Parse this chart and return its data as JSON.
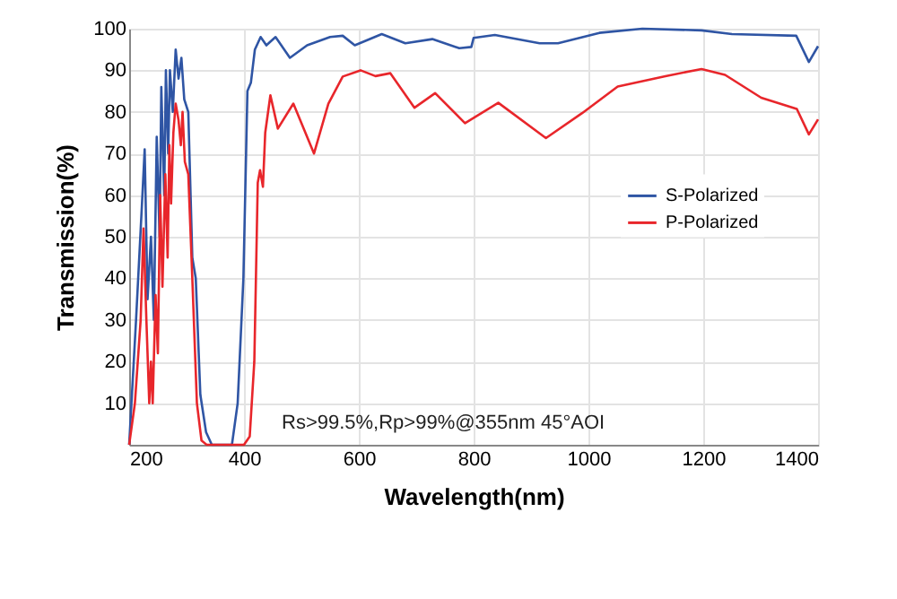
{
  "chart_data": {
    "type": "line",
    "xlabel": "Wavelength(nm)",
    "ylabel": "Transmission(%)",
    "xlim": [
      200,
      1400
    ],
    "xticks": [
      200,
      400,
      600,
      800,
      1000,
      1200,
      1400
    ],
    "ylim": [
      0,
      100
    ],
    "yticks": [
      10,
      20,
      30,
      40,
      50,
      60,
      70,
      80,
      90,
      100
    ],
    "grid": true,
    "legend": "right",
    "marker": "none",
    "line_style": "solid",
    "annotations": [
      "Rs>99.5%,Rp>99%@355nm 45°AOI"
    ],
    "series": [
      {
        "name": "S-Polarized",
        "color": "#2f55a4",
        "x": [
          200,
          212,
          222,
          227,
          232,
          238,
          243,
          248,
          253,
          256,
          261,
          264,
          268,
          271,
          276,
          281,
          286,
          291,
          296,
          303,
          310,
          316,
          324,
          334,
          344,
          379,
          389,
          399,
          406,
          412,
          419,
          429,
          439,
          455,
          480,
          510,
          550,
          572,
          593,
          640,
          681,
          728,
          775,
          796,
          800,
          837,
          915,
          947,
          1019,
          1094,
          1197,
          1250,
          1362,
          1384,
          1400
        ],
        "values": [
          0,
          30,
          57,
          71,
          35,
          50,
          30,
          74,
          50,
          86,
          60,
          90,
          70,
          90,
          80,
          95,
          88,
          93,
          83,
          80,
          45,
          40,
          12,
          3,
          0,
          0,
          10,
          40,
          85,
          87,
          95,
          98,
          96,
          98,
          93,
          96,
          98,
          98.3,
          96,
          98.7,
          96.5,
          97.5,
          95.3,
          95.6,
          97.8,
          98.5,
          96.5,
          96.5,
          99,
          100,
          99.6,
          98.7,
          98.3,
          92,
          95.8
        ]
      },
      {
        "name": "P-Polarized",
        "color": "#e8262b",
        "x": [
          200,
          210,
          220,
          225,
          230,
          235,
          238,
          241,
          246,
          250,
          254,
          258,
          263,
          267,
          270,
          273,
          277,
          281,
          286,
          290,
          293,
          297,
          303,
          310,
          318,
          326,
          335,
          400,
          410,
          418,
          424,
          428,
          433,
          437,
          446,
          459,
          486,
          522,
          547,
          572,
          603,
          629,
          655,
          697,
          733,
          785,
          843,
          926,
          989,
          1051,
          1134,
          1197,
          1238,
          1301,
          1363,
          1384,
          1400
        ],
        "values": [
          0,
          10,
          30,
          52,
          30,
          10,
          20,
          10,
          36,
          22,
          60,
          38,
          65,
          45,
          72,
          58,
          75,
          82,
          78,
          72,
          80,
          68,
          65,
          40,
          10,
          1,
          0,
          0,
          2,
          20,
          63,
          66,
          62,
          75,
          84,
          76,
          82,
          70,
          82,
          88.5,
          90,
          88.6,
          89.3,
          81,
          84.5,
          77.3,
          82.2,
          73.7,
          79.7,
          86.1,
          88.6,
          90.3,
          88.9,
          83.4,
          80.7,
          74.6,
          78.2
        ]
      }
    ]
  }
}
